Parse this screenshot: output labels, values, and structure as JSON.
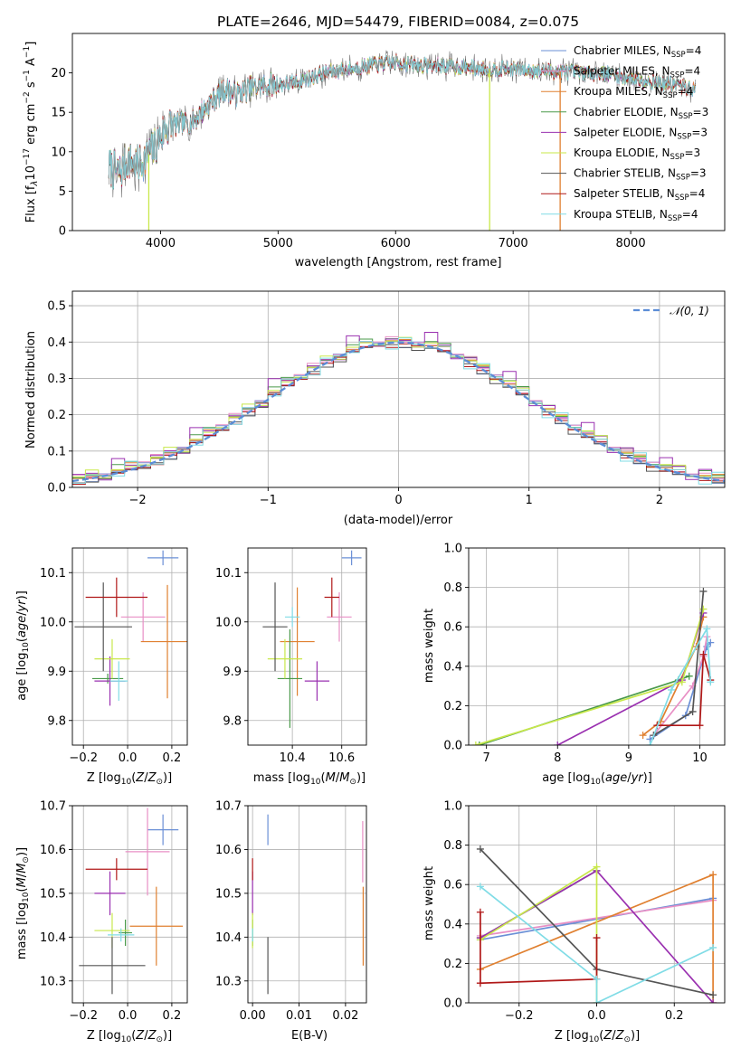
{
  "colors": {
    "chabrier_miles": "#6a8fd6",
    "salpeter_miles": "#e88fc5",
    "kroupa_miles": "#e08030",
    "chabrier_elodie": "#4a9a4a",
    "salpeter_elodie": "#9a30b0",
    "kroupa_elodie": "#c8e84a",
    "chabrier_stelib": "#555555",
    "salpeter_stelib": "#b01818",
    "kroupa_stelib": "#80dce6",
    "gaussian": "#5b8dd6"
  },
  "chart_data": [
    {
      "id": "spectrum",
      "type": "line",
      "title": "PLATE=2646, MJD=54479, FIBERID=0084, z=0.075",
      "xlabel": "wavelength [Angstrom, rest frame]",
      "ylabel": "Flux [fλ10⁻¹⁷ erg cm⁻² s⁻¹ A⁻¹]",
      "xlim": [
        3250,
        8800
      ],
      "ylim": [
        0,
        25
      ],
      "xticks": [
        "4000",
        "5000",
        "6000",
        "7000",
        "8000"
      ],
      "yticks": [
        "0",
        "5",
        "10",
        "15",
        "20"
      ],
      "grid": false,
      "legend_position": "top-right",
      "continuum": {
        "x": [
          3560,
          3650,
          3720,
          3800,
          3870,
          3950,
          4050,
          4150,
          4250,
          4350,
          4450,
          4550,
          4650,
          4750,
          4850,
          4950,
          5100,
          5250,
          5400,
          5600,
          5800,
          6000,
          6200,
          6400,
          6600,
          6800,
          7000,
          7200,
          7400,
          7600,
          7800,
          8000,
          8200,
          8400,
          8550
        ],
        "y": [
          8.0,
          7.3,
          9.0,
          8.2,
          9.2,
          10.5,
          13.2,
          13.5,
          13.6,
          15.0,
          16.6,
          18.0,
          17.3,
          18.0,
          18.3,
          18.5,
          18.6,
          19.3,
          20.0,
          20.5,
          21.0,
          21.3,
          21.0,
          20.9,
          20.7,
          20.5,
          20.5,
          20.3,
          20.2,
          20.0,
          19.9,
          19.3,
          18.9,
          18.4,
          17.8
        ]
      },
      "dips": [
        {
          "x": 3900,
          "y": 0
        },
        {
          "x": 6800,
          "y": 0
        },
        {
          "x": 7400,
          "y": 0
        }
      ],
      "series": [
        {
          "name": "Chabrier MILES, N",
          "sub": "SSP",
          "suffix": "=4",
          "color_key": "chabrier_miles"
        },
        {
          "name": "Salpeter MILES, N",
          "sub": "SSP",
          "suffix": "=4",
          "color_key": "salpeter_miles"
        },
        {
          "name": "Kroupa MILES, N",
          "sub": "SSP",
          "suffix": "=4",
          "color_key": "kroupa_miles"
        },
        {
          "name": "Chabrier ELODIE, N",
          "sub": "SSP",
          "suffix": "=3",
          "color_key": "chabrier_elodie"
        },
        {
          "name": "Salpeter ELODIE, N",
          "sub": "SSP",
          "suffix": "=3",
          "color_key": "salpeter_elodie"
        },
        {
          "name": "Kroupa ELODIE, N",
          "sub": "SSP",
          "suffix": "=3",
          "color_key": "kroupa_elodie"
        },
        {
          "name": "Chabrier STELIB, N",
          "sub": "SSP",
          "suffix": "=3",
          "color_key": "chabrier_stelib"
        },
        {
          "name": "Salpeter STELIB, N",
          "sub": "SSP",
          "suffix": "=4",
          "color_key": "salpeter_stelib"
        },
        {
          "name": "Kroupa STELIB, N",
          "sub": "SSP",
          "suffix": "=4",
          "color_key": "kroupa_stelib"
        }
      ]
    },
    {
      "id": "residuals",
      "type": "line",
      "xlabel": "(data-model)/error",
      "ylabel": "Normed distribution",
      "xlim": [
        -2.5,
        2.5
      ],
      "ylim": [
        0,
        0.54
      ],
      "xticks": [
        "−2",
        "−1",
        "0",
        "1",
        "2"
      ],
      "yticks": [
        "0.0",
        "0.1",
        "0.2",
        "0.3",
        "0.4",
        "0.5"
      ],
      "grid": true,
      "legend_position": "top-right",
      "legend_label": "𝒩(0, 1)",
      "bin_width": 0.1,
      "bin_start": -2.5,
      "series_offsets": {
        "chabrier_miles": [
          0.003,
          -0.02,
          0.01,
          -0.015,
          0.02,
          -0.01,
          0.005,
          0.012,
          -0.018
        ],
        "salpeter_miles": [
          -0.01,
          0.015,
          -0.02,
          0.01,
          0.0,
          0.018,
          -0.012,
          0.006,
          0.01
        ],
        "kroupa_miles": [
          0.02,
          -0.01,
          0.005,
          0.03,
          -0.02,
          0.015,
          -0.03,
          0.01,
          -0.005
        ],
        "chabrier_elodie": [
          -0.005,
          0.01,
          -0.015,
          0.02,
          0.005,
          -0.01,
          0.02,
          -0.02,
          0.01
        ],
        "salpeter_elodie": [
          0.012,
          -0.015,
          0.02,
          -0.005,
          0.04,
          -0.02,
          0.01,
          0.015,
          -0.01
        ],
        "kroupa_elodie": [
          0.0,
          0.02,
          -0.01,
          0.015,
          -0.015,
          0.01,
          0.005,
          -0.01,
          0.02
        ],
        "chabrier_stelib": [
          -0.015,
          0.005,
          0.015,
          -0.02,
          0.01,
          0.02,
          -0.01,
          0.0,
          0.015
        ],
        "salpeter_stelib": [
          0.01,
          -0.005,
          -0.01,
          0.025,
          -0.01,
          0.0,
          0.015,
          -0.015,
          0.005
        ],
        "kroupa_stelib": [
          -0.02,
          0.01,
          0.02,
          -0.01,
          0.015,
          -0.005,
          0.01,
          0.02,
          -0.02
        ]
      }
    },
    {
      "id": "age_vs_Z",
      "type": "scatter",
      "xlabel": "Z [log₁₀(Z/Z⊙)]",
      "ylabel": "age  [log₁₀(age/yr)]",
      "xlim": [
        -0.25,
        0.27
      ],
      "ylim": [
        9.75,
        10.15
      ],
      "xticks": [
        "−0.2",
        "0.0",
        "0.2"
      ],
      "yticks": [
        "9.8",
        "9.9",
        "10.0",
        "10.1"
      ],
      "points": [
        {
          "c": "chabrier_miles",
          "x": 0.16,
          "y": 10.13,
          "xe": 0.07,
          "ye": 0.015
        },
        {
          "c": "salpeter_miles",
          "x": 0.07,
          "y": 10.01,
          "xe": 0.1,
          "ye": 0.05
        },
        {
          "c": "kroupa_miles",
          "x": 0.18,
          "y": 9.96,
          "xe": 0.12,
          "ye": 0.115
        },
        {
          "c": "chabrier_elodie",
          "x": -0.09,
          "y": 9.885,
          "xe": 0.07,
          "ye": 0.01
        },
        {
          "c": "salpeter_elodie",
          "x": -0.08,
          "y": 9.88,
          "xe": 0.07,
          "ye": 0.05
        },
        {
          "c": "kroupa_elodie",
          "x": -0.07,
          "y": 9.925,
          "xe": 0.08,
          "ye": 0.04
        },
        {
          "c": "chabrier_stelib",
          "x": -0.11,
          "y": 9.99,
          "xe": 0.13,
          "ye": 0.09
        },
        {
          "c": "salpeter_stelib",
          "x": -0.05,
          "y": 10.05,
          "xe": 0.14,
          "ye": 0.04
        },
        {
          "c": "kroupa_stelib",
          "x": -0.04,
          "y": 9.88,
          "xe": 0.04,
          "ye": 0.04
        }
      ]
    },
    {
      "id": "age_vs_mass",
      "type": "scatter",
      "xlabel": "mass [log₁₀(M/M⊙)]",
      "xlim": [
        10.22,
        10.7
      ],
      "ylim": [
        9.75,
        10.15
      ],
      "xticks": [
        "10.4",
        "10.6"
      ],
      "yticks": [
        "9.8",
        "9.9",
        "10.0",
        "10.1"
      ],
      "points": [
        {
          "c": "chabrier_miles",
          "x": 10.64,
          "y": 10.13,
          "xe": 0.04,
          "ye": 0.015
        },
        {
          "c": "salpeter_miles",
          "x": 10.59,
          "y": 10.01,
          "xe": 0.05,
          "ye": 0.05
        },
        {
          "c": "kroupa_miles",
          "x": 10.42,
          "y": 9.96,
          "xe": 0.07,
          "ye": 0.11
        },
        {
          "c": "chabrier_elodie",
          "x": 10.39,
          "y": 9.885,
          "xe": 0.05,
          "ye": 0.1
        },
        {
          "c": "salpeter_elodie",
          "x": 10.5,
          "y": 9.88,
          "xe": 0.05,
          "ye": 0.04
        },
        {
          "c": "kroupa_elodie",
          "x": 10.37,
          "y": 9.925,
          "xe": 0.07,
          "ye": 0.04
        },
        {
          "c": "chabrier_stelib",
          "x": 10.33,
          "y": 9.99,
          "xe": 0.05,
          "ye": 0.09
        },
        {
          "c": "salpeter_stelib",
          "x": 10.56,
          "y": 10.05,
          "xe": 0.03,
          "ye": 0.04
        },
        {
          "c": "kroupa_stelib",
          "x": 10.4,
          "y": 10.01,
          "xe": 0.03,
          "ye": 0.02
        }
      ]
    },
    {
      "id": "massweight_vs_age",
      "type": "line",
      "xlabel": "age  [log₁₀(age/yr)]",
      "ylabel": "mass weight",
      "xlim": [
        6.75,
        10.35
      ],
      "ylim": [
        0,
        1.0
      ],
      "xticks": [
        "7",
        "8",
        "9",
        "10"
      ],
      "yticks": [
        "0.0",
        "0.2",
        "0.4",
        "0.6",
        "0.8",
        "1.0"
      ],
      "series": [
        {
          "c": "chabrier_miles",
          "x": [
            9.3,
            9.8,
            10.1,
            10.15
          ],
          "y": [
            0.03,
            0.15,
            0.5,
            0.52
          ]
        },
        {
          "c": "salpeter_miles",
          "x": [
            9.35,
            9.9,
            10.05,
            10.1
          ],
          "y": [
            0.05,
            0.3,
            0.45,
            0.55
          ]
        },
        {
          "c": "kroupa_miles",
          "x": [
            9.2,
            9.45,
            9.95,
            10.05
          ],
          "y": [
            0.05,
            0.12,
            0.5,
            0.65
          ]
        },
        {
          "c": "chabrier_elodie",
          "x": [
            6.9,
            9.7,
            9.85
          ],
          "y": [
            0.0,
            0.33,
            0.35
          ]
        },
        {
          "c": "salpeter_elodie",
          "x": [
            8.0,
            9.75,
            10.05
          ],
          "y": [
            0.0,
            0.33,
            0.67
          ]
        },
        {
          "c": "kroupa_elodie",
          "x": [
            6.85,
            9.75,
            10.05
          ],
          "y": [
            0.0,
            0.32,
            0.69
          ]
        },
        {
          "c": "chabrier_stelib",
          "x": [
            9.35,
            9.9,
            10.05
          ],
          "y": [
            0.05,
            0.17,
            0.78
          ]
        },
        {
          "c": "salpeter_stelib",
          "x": [
            9.4,
            10.0,
            10.05,
            10.15
          ],
          "y": [
            0.1,
            0.1,
            0.46,
            0.33
          ]
        },
        {
          "c": "kroupa_stelib",
          "x": [
            9.3,
            9.6,
            10.1,
            10.15
          ],
          "y": [
            0.0,
            0.28,
            0.59,
            0.32
          ]
        }
      ]
    },
    {
      "id": "mass_vs_Z",
      "type": "scatter",
      "xlabel": "Z [log₁₀(Z/Z⊙)]",
      "ylabel": "mass [log₁₀(M/M⊙)]",
      "xlim": [
        -0.25,
        0.27
      ],
      "ylim": [
        10.25,
        10.7
      ],
      "xticks": [
        "−0.2",
        "0.0",
        "0.2"
      ],
      "yticks": [
        "10.3",
        "10.4",
        "10.5",
        "10.6",
        "10.7"
      ],
      "points": [
        {
          "c": "chabrier_miles",
          "x": 0.16,
          "y": 10.645,
          "xe": 0.07,
          "ye": 0.035
        },
        {
          "c": "salpeter_miles",
          "x": 0.09,
          "y": 10.595,
          "xe": 0.1,
          "ye": 0.1
        },
        {
          "c": "kroupa_miles",
          "x": 0.13,
          "y": 10.425,
          "xe": 0.12,
          "ye": 0.09
        },
        {
          "c": "chabrier_elodie",
          "x": -0.01,
          "y": 10.41,
          "xe": 0.03,
          "ye": 0.03
        },
        {
          "c": "salpeter_elodie",
          "x": -0.08,
          "y": 10.5,
          "xe": 0.07,
          "ye": 0.05
        },
        {
          "c": "kroupa_elodie",
          "x": -0.07,
          "y": 10.415,
          "xe": 0.08,
          "ye": 0.04
        },
        {
          "c": "chabrier_stelib",
          "x": -0.07,
          "y": 10.335,
          "xe": 0.15,
          "ye": 0.065
        },
        {
          "c": "salpeter_stelib",
          "x": -0.05,
          "y": 10.555,
          "xe": 0.14,
          "ye": 0.025
        },
        {
          "c": "kroupa_stelib",
          "x": -0.03,
          "y": 10.405,
          "xe": 0.06,
          "ye": 0.015
        }
      ]
    },
    {
      "id": "mass_vs_ebv",
      "type": "scatter",
      "xlabel": "E(B-V)",
      "xlim": [
        -0.001,
        0.0245
      ],
      "ylim": [
        10.25,
        10.7
      ],
      "xticks": [
        "0.00",
        "0.01",
        "0.02"
      ],
      "yticks": [
        "10.3",
        "10.4",
        "10.5",
        "10.6",
        "10.7"
      ],
      "points": [
        {
          "c": "chabrier_miles",
          "x": 0.0033,
          "y": 10.645,
          "xe": 0,
          "ye": 0.035
        },
        {
          "c": "salpeter_miles",
          "x": 0.0237,
          "y": 10.595,
          "xe": 0,
          "ye": 0.07
        },
        {
          "c": "kroupa_miles",
          "x": 0.0238,
          "y": 10.425,
          "xe": 0,
          "ye": 0.09
        },
        {
          "c": "chabrier_elodie",
          "x": 0.0,
          "y": 10.41,
          "xe": 0,
          "ye": 0.03
        },
        {
          "c": "salpeter_elodie",
          "x": 0.0,
          "y": 10.5,
          "xe": 0,
          "ye": 0.05
        },
        {
          "c": "kroupa_elodie",
          "x": 0.0,
          "y": 10.415,
          "xe": 0,
          "ye": 0.04
        },
        {
          "c": "chabrier_stelib",
          "x": 0.0033,
          "y": 10.335,
          "xe": 0,
          "ye": 0.065
        },
        {
          "c": "salpeter_stelib",
          "x": 0.0,
          "y": 10.555,
          "xe": 0,
          "ye": 0.025
        },
        {
          "c": "kroupa_stelib",
          "x": 0.0,
          "y": 10.405,
          "xe": 0,
          "ye": 0.015
        }
      ]
    },
    {
      "id": "massweight_vs_Z",
      "type": "line",
      "xlabel": "Z [log₁₀(Z/Z⊙)]",
      "ylabel": "mass weight",
      "xlim": [
        -0.33,
        0.33
      ],
      "ylim": [
        0,
        1.0
      ],
      "xticks": [
        "−0.2",
        "0.0",
        "0.2"
      ],
      "yticks": [
        "0.0",
        "0.2",
        "0.4",
        "0.6",
        "0.8",
        "1.0"
      ],
      "series": [
        {
          "c": "chabrier_miles",
          "x": [
            -0.3,
            0.3
          ],
          "y": [
            0.32,
            0.53
          ]
        },
        {
          "c": "salpeter_miles",
          "x": [
            -0.3,
            0.3
          ],
          "y": [
            0.34,
            0.52
          ]
        },
        {
          "c": "kroupa_miles",
          "x": [
            -0.3,
            0.3,
            0.3
          ],
          "y": [
            0.17,
            0.65,
            0.0
          ]
        },
        {
          "c": "chabrier_elodie",
          "x": [
            -0.3,
            0.0
          ],
          "y": [
            0.33,
            0.67
          ]
        },
        {
          "c": "salpeter_elodie",
          "x": [
            -0.3,
            0.0,
            0.3
          ],
          "y": [
            0.33,
            0.67,
            0.0
          ]
        },
        {
          "c": "kroupa_elodie",
          "x": [
            -0.3,
            0.0,
            0.0
          ],
          "y": [
            0.32,
            0.69,
            0.0
          ]
        },
        {
          "c": "chabrier_stelib",
          "x": [
            -0.3,
            0.0,
            0.3
          ],
          "y": [
            0.78,
            0.17,
            0.04
          ]
        },
        {
          "c": "salpeter_stelib",
          "x": [
            -0.3,
            -0.3,
            0.0,
            0.0
          ],
          "y": [
            0.46,
            0.1,
            0.12,
            0.33
          ]
        },
        {
          "c": "kroupa_stelib",
          "x": [
            -0.3,
            0.0,
            0.0,
            0.3
          ],
          "y": [
            0.59,
            0.12,
            0.0,
            0.28
          ]
        }
      ]
    }
  ]
}
